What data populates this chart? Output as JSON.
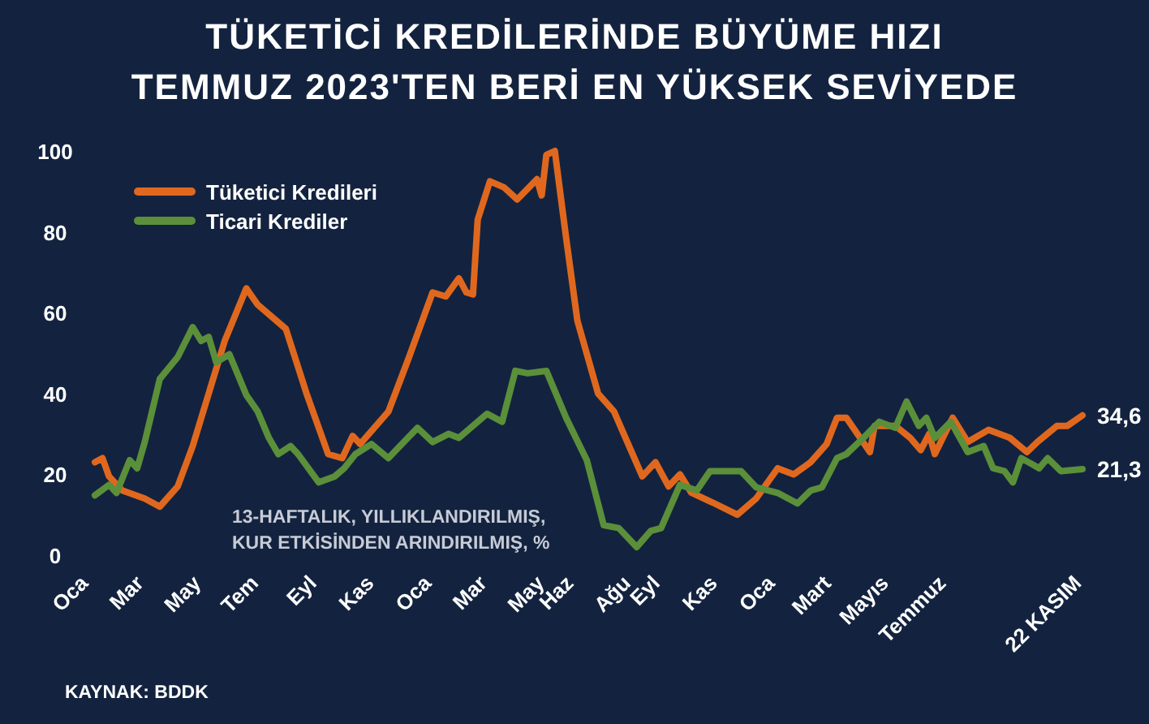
{
  "chart_data": {
    "type": "line",
    "title": "TÜKETİCİ KREDİLERİNDE BÜYÜME HIZI\nTEMMUZ 2023'TEN BERİ EN YÜKSEK SEVİYEDE",
    "legend": "top left",
    "ylim": [
      0,
      100
    ],
    "yticks": [
      0,
      20,
      40,
      60,
      80,
      100
    ],
    "xlim": [
      "2022-01-01",
      "2024-11-22"
    ],
    "xticks": [
      {
        "value": "2022-01-01",
        "label": "Oca"
      },
      {
        "value": "2022-03-01",
        "label": "Mar"
      },
      {
        "value": "2022-05-01",
        "label": "May"
      },
      {
        "value": "2022-07-01",
        "label": "Tem"
      },
      {
        "value": "2022-09-01",
        "label": "Eyl"
      },
      {
        "value": "2022-11-01",
        "label": "Kas"
      },
      {
        "value": "2023-01-01",
        "label": "Oca"
      },
      {
        "value": "2023-03-01",
        "label": "Mar"
      },
      {
        "value": "2023-05-01",
        "label": "May"
      },
      {
        "value": "2023-06-01",
        "label": "Haz"
      },
      {
        "value": "2023-08-01",
        "label": "Ağu"
      },
      {
        "value": "2023-09-01",
        "label": "Eyl"
      },
      {
        "value": "2023-11-01",
        "label": "Kas"
      },
      {
        "value": "2024-01-01",
        "label": "Oca"
      },
      {
        "value": "2024-03-01",
        "label": "Mart"
      },
      {
        "value": "2024-05-01",
        "label": "Mayıs"
      },
      {
        "value": "2024-07-01",
        "label": "Temmuz"
      },
      {
        "value": "2024-11-22",
        "label": "22 KASIM"
      }
    ],
    "annotations": [
      "13-HAFTALIK, YILLIKLANDIRILMIŞ,\nKUR ETKİSİNDEN ARINDIRILMIŞ, %",
      "KAYNAK: BDDK"
    ],
    "series": [
      {
        "name": "Tüketici Kredileri",
        "color": "#e0681e",
        "x": [
          "2022-01-07",
          "2022-01-15",
          "2022-01-22",
          "2022-02-05",
          "2022-03-01",
          "2022-03-17",
          "2022-04-05",
          "2022-04-21",
          "2022-05-08",
          "2022-05-25",
          "2022-06-17",
          "2022-06-29",
          "2022-07-29",
          "2022-08-20",
          "2022-09-12",
          "2022-09-27",
          "2022-10-08",
          "2022-10-16",
          "2022-11-15",
          "2022-12-07",
          "2023-01-01",
          "2023-01-15",
          "2023-01-29",
          "2023-02-06",
          "2023-02-13",
          "2023-02-18",
          "2023-03-03",
          "2023-03-18",
          "2023-04-01",
          "2023-04-22",
          "2023-04-27",
          "2023-05-02",
          "2023-05-11",
          "2023-05-23",
          "2023-06-04",
          "2023-06-26",
          "2023-07-13",
          "2023-08-12",
          "2023-08-26",
          "2023-09-09",
          "2023-09-21",
          "2023-10-03",
          "2023-10-26",
          "2023-11-21",
          "2023-12-11",
          "2024-01-03",
          "2024-01-20",
          "2024-02-07",
          "2024-02-24",
          "2024-03-06",
          "2024-03-16",
          "2024-04-10",
          "2024-04-15",
          "2024-05-07",
          "2024-05-23",
          "2024-06-03",
          "2024-06-12",
          "2024-06-18",
          "2024-07-07",
          "2024-07-23",
          "2024-08-14",
          "2024-09-06",
          "2024-09-24",
          "2024-10-05",
          "2024-10-26",
          "2024-11-06",
          "2024-11-22"
        ],
        "values": [
          23,
          24,
          19.5,
          16,
          14,
          12,
          17,
          27,
          40,
          53,
          66,
          62,
          56,
          40,
          25,
          24,
          29.5,
          27.5,
          35.5,
          49,
          65,
          64,
          68.5,
          65,
          64.5,
          83,
          92.5,
          91,
          88,
          93,
          89,
          99,
          100,
          78.5,
          58,
          40,
          35.5,
          19.5,
          23,
          17,
          20,
          15.5,
          13,
          10,
          14,
          21.5,
          20,
          23,
          27.5,
          34,
          34,
          25.5,
          32,
          32,
          29,
          26,
          30,
          25,
          34,
          28,
          31,
          29,
          25.5,
          28,
          32,
          32,
          34.6
        ],
        "value_labels": [
          null,
          null,
          null,
          null,
          null,
          null,
          null,
          null,
          null,
          null,
          null,
          null,
          null,
          null,
          null,
          null,
          null,
          null,
          null,
          null,
          null,
          null,
          null,
          null,
          null,
          null,
          null,
          null,
          null,
          null,
          null,
          null,
          null,
          null,
          null,
          null,
          null,
          null,
          null,
          null,
          null,
          null,
          null,
          null,
          null,
          null,
          null,
          null,
          null,
          null,
          null,
          null,
          null,
          null,
          null,
          null,
          null,
          null,
          null,
          null,
          null,
          null,
          null,
          null,
          null,
          null,
          "34,6"
        ]
      },
      {
        "name": "Ticari Krediler",
        "color": "#5b8f3a",
        "x": [
          "2022-01-07",
          "2022-01-22",
          "2022-01-30",
          "2022-02-13",
          "2022-02-21",
          "2022-03-01",
          "2022-03-17",
          "2022-04-05",
          "2022-04-21",
          "2022-04-30",
          "2022-05-08",
          "2022-05-16",
          "2022-05-30",
          "2022-06-17",
          "2022-06-29",
          "2022-07-11",
          "2022-07-21",
          "2022-08-03",
          "2022-08-11",
          "2022-09-02",
          "2022-09-19",
          "2022-09-29",
          "2022-10-11",
          "2022-10-28",
          "2022-11-15",
          "2022-12-16",
          "2023-01-01",
          "2023-01-18",
          "2023-01-29",
          "2023-02-28",
          "2023-03-16",
          "2023-03-30",
          "2023-04-12",
          "2023-05-02",
          "2023-05-23",
          "2023-06-14",
          "2023-07-02",
          "2023-07-18",
          "2023-08-06",
          "2023-08-21",
          "2023-09-01",
          "2023-09-21",
          "2023-10-09",
          "2023-10-23",
          "2023-11-25",
          "2023-12-11",
          "2024-01-03",
          "2024-01-24",
          "2024-02-07",
          "2024-02-19",
          "2024-03-06",
          "2024-03-16",
          "2024-04-03",
          "2024-04-20",
          "2024-05-07",
          "2024-05-19",
          "2024-06-01",
          "2024-06-09",
          "2024-06-18",
          "2024-07-05",
          "2024-07-23",
          "2024-08-09",
          "2024-08-19",
          "2024-08-31",
          "2024-09-09",
          "2024-09-18",
          "2024-10-07",
          "2024-10-16",
          "2024-10-30",
          "2024-11-22"
        ],
        "values": [
          14.8,
          17.4,
          15.4,
          23.5,
          21.5,
          28,
          43.6,
          49,
          56.4,
          53,
          54,
          47.7,
          49.7,
          39.6,
          35.6,
          29,
          25,
          27,
          25,
          18,
          19.5,
          21.5,
          25,
          27.5,
          24,
          31.5,
          28,
          30,
          29,
          35,
          33,
          45.6,
          45,
          45.6,
          34,
          23.5,
          7.4,
          6.7,
          2,
          6,
          6.7,
          17.4,
          16,
          20.8,
          20.8,
          16.8,
          15.4,
          12.8,
          16,
          16.8,
          24,
          25,
          29,
          33,
          31.5,
          38,
          32,
          34,
          29,
          33,
          25.5,
          27,
          21.5,
          20.8,
          18,
          24,
          21.5,
          24,
          20.8,
          21.3
        ],
        "value_labels": [
          null,
          null,
          null,
          null,
          null,
          null,
          null,
          null,
          null,
          null,
          null,
          null,
          null,
          null,
          null,
          null,
          null,
          null,
          null,
          null,
          null,
          null,
          null,
          null,
          null,
          null,
          null,
          null,
          null,
          null,
          null,
          null,
          null,
          null,
          null,
          null,
          null,
          null,
          null,
          null,
          null,
          null,
          null,
          null,
          null,
          null,
          null,
          null,
          null,
          null,
          null,
          null,
          null,
          null,
          null,
          null,
          null,
          null,
          null,
          null,
          null,
          null,
          null,
          null,
          null,
          null,
          null,
          null,
          null,
          "21,3"
        ]
      }
    ]
  }
}
